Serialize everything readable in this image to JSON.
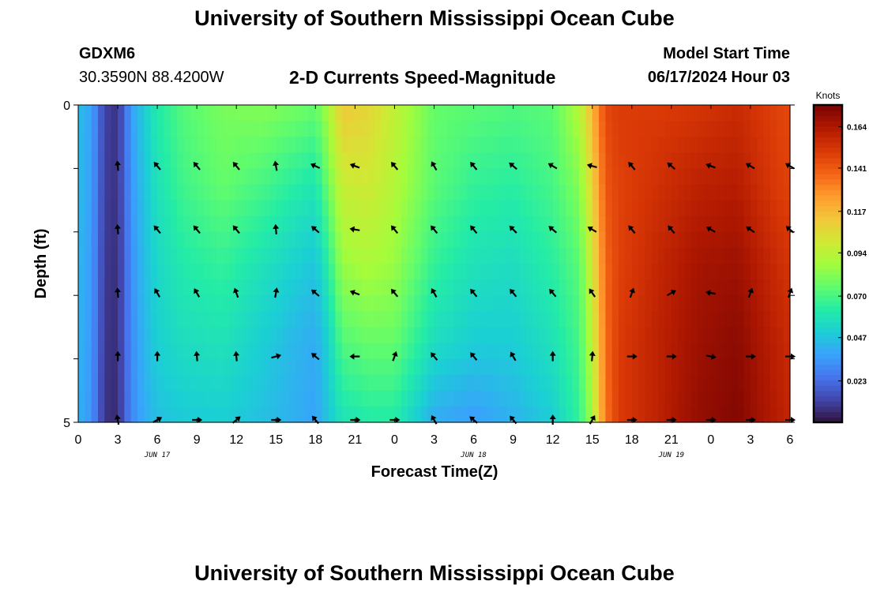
{
  "header": {
    "title": "University of Southern Mississippi Ocean Cube",
    "station": "GDXM6",
    "coords": "30.3590N  88.4200W",
    "subtitle": "2-D Currents Speed-Magnitude",
    "model_label": "Model Start Time",
    "model_time": "06/17/2024 Hour 03"
  },
  "footer": {
    "title": "University of Southern Mississippi Ocean Cube"
  },
  "chart_data": {
    "type": "heatmap",
    "title": "2-D Currents Speed-Magnitude",
    "xlabel": "Forecast Time(Z)",
    "ylabel": "Depth (ft)",
    "x_tick_labels": [
      "0",
      "3",
      "6",
      "9",
      "12",
      "15",
      "18",
      "21",
      "0",
      "3",
      "6",
      "9",
      "12",
      "15",
      "18",
      "21",
      "0",
      "3",
      "6"
    ],
    "x_date_labels": [
      "JUN 17",
      "JUN 18",
      "JUN 19"
    ],
    "y_tick_labels": [
      "0",
      "5"
    ],
    "ylim": [
      0,
      5
    ],
    "x_range_hours": [
      0,
      54
    ],
    "colorbar": {
      "label": "Knots",
      "ticks": [
        0.023,
        0.047,
        0.07,
        0.094,
        0.117,
        0.141,
        0.164
      ],
      "range": [
        0.0,
        0.176
      ],
      "colormap": [
        "#30123b",
        "#4145ab",
        "#4675ed",
        "#39a2fc",
        "#1bcfd4",
        "#24eca6",
        "#61fc6c",
        "#a4fc3b",
        "#d1e834",
        "#f3c63a",
        "#fe9b2d",
        "#f36315",
        "#d93806",
        "#b11901",
        "#7a0403"
      ]
    },
    "speed_columns": [
      [
        0,
        0.045,
        0.045,
        0.044,
        0.043,
        0.042
      ],
      [
        1,
        0.038,
        0.037,
        0.036,
        0.035,
        0.034
      ],
      [
        2,
        0.012,
        0.011,
        0.01,
        0.009,
        0.008
      ],
      [
        3,
        0.008,
        0.008,
        0.007,
        0.007,
        0.006
      ],
      [
        4,
        0.036,
        0.034,
        0.032,
        0.031,
        0.03
      ],
      [
        5,
        0.05,
        0.047,
        0.045,
        0.043,
        0.04
      ],
      [
        6,
        0.062,
        0.058,
        0.054,
        0.051,
        0.046
      ],
      [
        8,
        0.073,
        0.069,
        0.062,
        0.056,
        0.049
      ],
      [
        11,
        0.08,
        0.076,
        0.066,
        0.058,
        0.05
      ],
      [
        14,
        0.082,
        0.07,
        0.058,
        0.05,
        0.046
      ],
      [
        17,
        0.078,
        0.062,
        0.05,
        0.042,
        0.04
      ],
      [
        18,
        0.076,
        0.06,
        0.048,
        0.04,
        0.038
      ],
      [
        19,
        0.09,
        0.078,
        0.064,
        0.052,
        0.048
      ],
      [
        20,
        0.112,
        0.098,
        0.086,
        0.072,
        0.058
      ],
      [
        22,
        0.108,
        0.1,
        0.09,
        0.076,
        0.062
      ],
      [
        24,
        0.096,
        0.092,
        0.086,
        0.076,
        0.062
      ],
      [
        27,
        0.076,
        0.074,
        0.066,
        0.056,
        0.04
      ],
      [
        30,
        0.074,
        0.066,
        0.058,
        0.05,
        0.036
      ],
      [
        33,
        0.072,
        0.064,
        0.056,
        0.05,
        0.042
      ],
      [
        36,
        0.074,
        0.07,
        0.064,
        0.058,
        0.05
      ],
      [
        38,
        0.092,
        0.082,
        0.074,
        0.07,
        0.066
      ],
      [
        39,
        0.118,
        0.108,
        0.1,
        0.094,
        0.088
      ],
      [
        40,
        0.146,
        0.142,
        0.138,
        0.136,
        0.134
      ],
      [
        41,
        0.15,
        0.148,
        0.148,
        0.15,
        0.15
      ],
      [
        44,
        0.15,
        0.154,
        0.158,
        0.16,
        0.16
      ],
      [
        47,
        0.152,
        0.16,
        0.166,
        0.168,
        0.17
      ],
      [
        50,
        0.156,
        0.162,
        0.168,
        0.172,
        0.174
      ],
      [
        53,
        0.148,
        0.15,
        0.156,
        0.16,
        0.162
      ],
      [
        54,
        0.146,
        0.148,
        0.152,
        0.156,
        0.158
      ]
    ],
    "vector_depths_ft": [
      1,
      2,
      3,
      4,
      5
    ],
    "vector_hours": [
      3,
      6,
      9,
      12,
      15,
      18,
      21,
      24,
      27,
      30,
      33,
      36,
      39,
      42,
      45,
      48,
      51,
      54
    ],
    "vector_rows": [
      [
        95,
        130,
        130,
        130,
        100,
        155,
        160,
        130,
        120,
        130,
        140,
        150,
        165,
        130,
        140,
        160,
        150,
        150
      ],
      [
        95,
        130,
        130,
        130,
        95,
        140,
        170,
        130,
        130,
        130,
        135,
        140,
        150,
        130,
        130,
        150,
        145,
        140
      ],
      [
        95,
        120,
        120,
        110,
        80,
        140,
        160,
        130,
        120,
        130,
        130,
        130,
        125,
        70,
        30,
        170,
        70,
        70
      ],
      [
        90,
        90,
        95,
        95,
        15,
        140,
        180,
        70,
        130,
        130,
        120,
        90,
        85,
        0,
        0,
        350,
        0,
        0
      ],
      [
        100,
        30,
        0,
        40,
        0,
        130,
        0,
        0,
        120,
        140,
        130,
        90,
        60,
        0,
        0,
        0,
        0,
        0
      ]
    ]
  }
}
